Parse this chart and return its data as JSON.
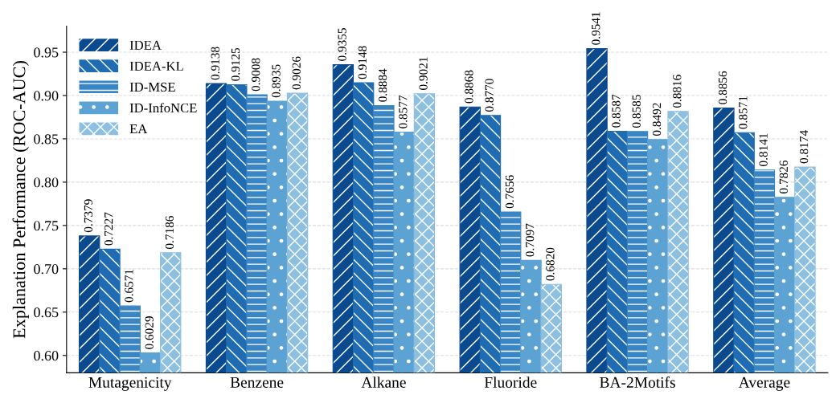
{
  "chart_data": {
    "type": "bar",
    "ylabel": "Explanation Performance (ROC-AUC)",
    "categories": [
      "Mutagenicity",
      "Benzene",
      "Alkane",
      "Fluoride",
      "BA-2Motifs",
      "Average"
    ],
    "series": [
      {
        "name": "IDEA",
        "color": "#0b4a8f",
        "values": [
          0.7379,
          0.9138,
          0.9355,
          0.8868,
          0.9541,
          0.8856
        ],
        "value_labels": [
          "0.7379",
          "0.9138",
          "0.9355",
          "0.8868",
          "0.9541",
          "0.8856"
        ]
      },
      {
        "name": "IDEA-KL",
        "color": "#1f6cb3",
        "values": [
          0.7227,
          0.9125,
          0.9148,
          0.877,
          0.8587,
          0.8571
        ],
        "value_labels": [
          "0.7227",
          "0.9125",
          "0.9148",
          "0.8770",
          "0.8587",
          "0.8571"
        ]
      },
      {
        "name": "ID-MSE",
        "color": "#3a86c5",
        "values": [
          0.6571,
          0.9008,
          0.8884,
          0.7656,
          0.8585,
          0.8141
        ],
        "value_labels": [
          "0.6571",
          "0.9008",
          "0.8884",
          "0.7656",
          "0.8585",
          "0.8141"
        ]
      },
      {
        "name": "ID-InfoNCE",
        "color": "#5ca3d3",
        "values": [
          0.6029,
          0.8935,
          0.8577,
          0.7097,
          0.8492,
          0.7826
        ],
        "value_labels": [
          "0.6029",
          "0.8935",
          "0.8577",
          "0.7097",
          "0.8492",
          "0.7826"
        ]
      },
      {
        "name": "EA",
        "color": "#8cbfe0",
        "values": [
          0.7186,
          0.9026,
          0.9021,
          0.682,
          0.8816,
          0.8174
        ],
        "value_labels": [
          "0.7186",
          "0.9026",
          "0.9021",
          "0.6820",
          "0.8816",
          "0.8174"
        ]
      }
    ],
    "ylim": [
      0.58,
      0.98
    ],
    "yticks": [
      {
        "value": 0.6,
        "label": "0.60"
      },
      0.65,
      {
        "value": 0.7,
        "label": "0.70"
      },
      0.75,
      {
        "value": 0.8,
        "label": "0.80"
      },
      0.85,
      {
        "value": 0.9,
        "label": "0.90"
      },
      0.95
    ],
    "grid": "y",
    "legend": "top left"
  }
}
